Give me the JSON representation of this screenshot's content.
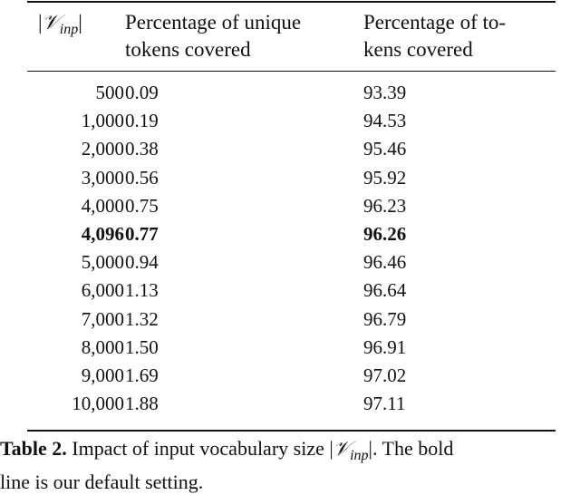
{
  "table": {
    "headers": {
      "col1": {
        "symbol": "𝒱",
        "subscript": "inp"
      },
      "col2": {
        "line1": "Percentage of unique",
        "line2": "tokens covered"
      },
      "col3": {
        "line1": "Percentage of to-",
        "line2": "kens covered"
      }
    },
    "rows": [
      {
        "size": "500",
        "unique": "0.09",
        "tokens": "93.39",
        "bold": false
      },
      {
        "size": "1,000",
        "unique": "0.19",
        "tokens": "94.53",
        "bold": false
      },
      {
        "size": "2,000",
        "unique": "0.38",
        "tokens": "95.46",
        "bold": false
      },
      {
        "size": "3,000",
        "unique": "0.56",
        "tokens": "95.92",
        "bold": false
      },
      {
        "size": "4,000",
        "unique": "0.75",
        "tokens": "96.23",
        "bold": false
      },
      {
        "size": "4,096",
        "unique": "0.77",
        "tokens": "96.26",
        "bold": true
      },
      {
        "size": "5,000",
        "unique": "0.94",
        "tokens": "96.46",
        "bold": false
      },
      {
        "size": "6,000",
        "unique": "1.13",
        "tokens": "96.64",
        "bold": false
      },
      {
        "size": "7,000",
        "unique": "1.32",
        "tokens": "96.79",
        "bold": false
      },
      {
        "size": "8,000",
        "unique": "1.50",
        "tokens": "96.91",
        "bold": false
      },
      {
        "size": "9,000",
        "unique": "1.69",
        "tokens": "97.02",
        "bold": false
      },
      {
        "size": "10,000",
        "unique": "1.88",
        "tokens": "97.11",
        "bold": false
      }
    ]
  },
  "caption": {
    "label": "Table 2.",
    "text_before": " Impact of input vocabulary size |",
    "symbol": "𝒱",
    "subscript": "inp",
    "text_after": "|. The bold",
    "line2": "line is our default setting."
  }
}
